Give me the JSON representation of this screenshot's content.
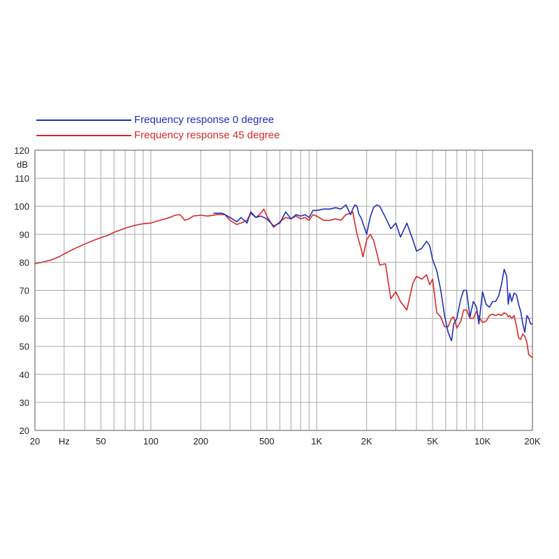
{
  "chart_data": {
    "type": "line",
    "xscale": "log",
    "xlim": [
      20,
      20000
    ],
    "ylim": [
      20,
      120
    ],
    "ylabel": "dB",
    "x_unit": "Hz",
    "grid": true,
    "legend_position": "top-left",
    "x_ticks": [
      {
        "value": 20,
        "label": "20"
      },
      {
        "value": 30,
        "label": "Hz"
      },
      {
        "value": 50,
        "label": "50"
      },
      {
        "value": 100,
        "label": "100"
      },
      {
        "value": 200,
        "label": "200"
      },
      {
        "value": 500,
        "label": "500"
      },
      {
        "value": 1000,
        "label": "1K"
      },
      {
        "value": 2000,
        "label": "2K"
      },
      {
        "value": 5000,
        "label": "5K"
      },
      {
        "value": 10000,
        "label": "10K"
      },
      {
        "value": 20000,
        "label": "20K"
      }
    ],
    "y_ticks": [
      20,
      30,
      40,
      50,
      60,
      70,
      80,
      90,
      100,
      110,
      120
    ],
    "series": [
      {
        "name": "Frequency response 0 degree",
        "color": "#1f2fb4",
        "x": [
          240,
          270,
          300,
          330,
          350,
          380,
          400,
          430,
          460,
          500,
          550,
          600,
          650,
          700,
          750,
          800,
          850,
          900,
          950,
          1000,
          1100,
          1200,
          1300,
          1400,
          1500,
          1600,
          1650,
          1700,
          1750,
          1800,
          1850,
          1900,
          2000,
          2100,
          2200,
          2300,
          2400,
          2600,
          2800,
          3000,
          3200,
          3500,
          3800,
          4000,
          4300,
          4600,
          4800,
          5000,
          5300,
          5600,
          5900,
          6200,
          6500,
          6700,
          7000,
          7400,
          7700,
          8000,
          8400,
          8800,
          9200,
          9500,
          10000,
          10500,
          11000,
          11500,
          12000,
          12500,
          13000,
          13500,
          14000,
          14300,
          14600,
          15000,
          15500,
          16000,
          16500,
          17000,
          17500,
          18000,
          18500,
          19000,
          19500,
          20000
        ],
        "y": [
          97.5,
          97.5,
          96.0,
          94.5,
          96.0,
          94.0,
          98.0,
          96.0,
          96.5,
          95.5,
          93.0,
          94.0,
          98.0,
          95.5,
          97.0,
          96.5,
          97.0,
          96.0,
          98.5,
          98.5,
          99.0,
          99.0,
          99.5,
          99.0,
          100.5,
          97.0,
          99.0,
          100.5,
          100.0,
          97.0,
          96.0,
          94.0,
          90.0,
          96.0,
          99.5,
          100.5,
          100.0,
          96.0,
          92.0,
          94.0,
          89.0,
          94.0,
          88.0,
          84.0,
          85.0,
          87.5,
          86.0,
          81.0,
          77.0,
          70.0,
          61.0,
          55.0,
          52.0,
          58.0,
          60.0,
          67.0,
          70.0,
          70.0,
          60.5,
          66.0,
          64.0,
          58.0,
          69.5,
          65.0,
          64.0,
          66.0,
          66.0,
          68.0,
          72.0,
          77.5,
          75.0,
          65.0,
          69.0,
          66.0,
          69.0,
          68.5,
          65.0,
          62.5,
          58.0,
          55.0,
          61.0,
          60.0,
          58.0,
          58.0
        ]
      },
      {
        "name": "Frequency response 45 degree",
        "color": "#d42a2a",
        "x": [
          20,
          22,
          25,
          28,
          30,
          35,
          40,
          45,
          50,
          55,
          60,
          70,
          80,
          90,
          100,
          110,
          120,
          130,
          140,
          150,
          160,
          170,
          180,
          200,
          220,
          250,
          280,
          300,
          330,
          350,
          380,
          400,
          430,
          460,
          480,
          500,
          550,
          600,
          650,
          700,
          750,
          800,
          850,
          900,
          950,
          1000,
          1100,
          1200,
          1300,
          1400,
          1500,
          1600,
          1650,
          1700,
          1750,
          1800,
          1850,
          1900,
          2000,
          2100,
          2200,
          2300,
          2400,
          2600,
          2800,
          3000,
          3200,
          3500,
          3800,
          4000,
          4300,
          4600,
          4800,
          5000,
          5300,
          5600,
          5900,
          6200,
          6500,
          6700,
          7000,
          7400,
          7700,
          8000,
          8400,
          8800,
          9200,
          9500,
          10000,
          10500,
          11000,
          11500,
          12000,
          12500,
          13000,
          13500,
          14000,
          14300,
          14600,
          15000,
          15500,
          16000,
          16500,
          17000,
          17500,
          18000,
          18500,
          19000,
          19500,
          20000
        ],
        "y": [
          79.5,
          80.0,
          80.8,
          82.0,
          83.0,
          85.0,
          86.5,
          87.8,
          88.8,
          89.6,
          90.7,
          92.2,
          93.2,
          93.8,
          94.0,
          94.8,
          95.4,
          96.0,
          96.8,
          97.0,
          95.0,
          95.5,
          96.5,
          96.8,
          96.5,
          97.0,
          97.0,
          95.0,
          93.5,
          94.0,
          95.0,
          97.5,
          96.0,
          97.5,
          99.0,
          96.5,
          92.5,
          94.5,
          96.0,
          95.5,
          96.5,
          95.5,
          96.0,
          95.0,
          97.0,
          96.5,
          95.0,
          95.0,
          95.5,
          95.0,
          97.0,
          97.5,
          98.0,
          94.0,
          90.0,
          87.5,
          85.0,
          82.0,
          88.0,
          90.0,
          88.0,
          83.5,
          79.0,
          79.5,
          67.0,
          69.5,
          66.0,
          63.0,
          72.5,
          75.0,
          74.0,
          75.5,
          72.0,
          74.0,
          62.0,
          60.5,
          57.0,
          57.0,
          60.0,
          60.5,
          56.5,
          59.0,
          63.0,
          63.0,
          60.0,
          60.0,
          62.5,
          60.5,
          58.5,
          59.0,
          61.0,
          61.5,
          61.0,
          61.5,
          61.0,
          62.0,
          61.5,
          60.5,
          61.0,
          60.0,
          61.0,
          57.5,
          53.0,
          52.5,
          54.5,
          53.5,
          51.5,
          47.0,
          46.5,
          46.0
        ]
      }
    ]
  }
}
